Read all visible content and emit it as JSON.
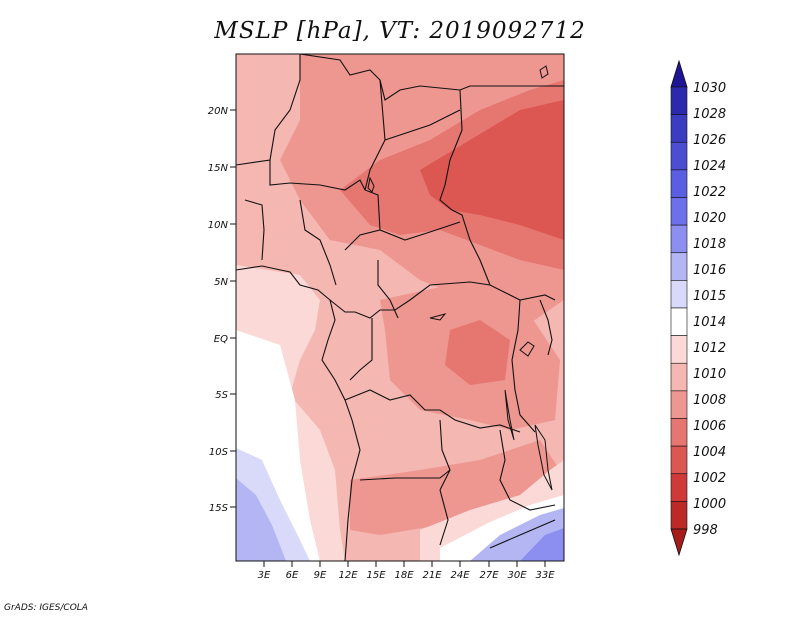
{
  "title": "MSLP [hPa], VT: 2019092712",
  "credit": "GrADS: IGES/COLA",
  "lat_labels": [
    "20N",
    "15N",
    "10N",
    "5N",
    "EQ",
    "5S",
    "10S",
    "15S"
  ],
  "lon_labels": [
    "3E",
    "6E",
    "9E",
    "12E",
    "15E",
    "18E",
    "21E",
    "24E",
    "27E",
    "30E",
    "33E"
  ],
  "colorbar": {
    "levels": [
      "1030",
      "1028",
      "1026",
      "1024",
      "1022",
      "1020",
      "1018",
      "1016",
      "1015",
      "1014",
      "1012",
      "1010",
      "1008",
      "1006",
      "1004",
      "1002",
      "1000",
      "998"
    ],
    "colors": [
      "#1e1496",
      "#2c2aac",
      "#3c3cc0",
      "#4b4dd2",
      "#5a5ee0",
      "#6d70ea",
      "#8c8ef0",
      "#b4b6f4",
      "#d9dafa",
      "#ffffff",
      "#fad9d6",
      "#f4b7b2",
      "#ee9690",
      "#e67670",
      "#dc5652",
      "#cf3a38",
      "#bc2a28",
      "#a51c1a"
    ]
  },
  "map": {
    "projection": "lat-lon",
    "lon_range": [
      0,
      35
    ],
    "lat_range": [
      -19.5,
      24.5
    ],
    "variable": "MSLP",
    "units": "hPa",
    "valid_time": "2019092712"
  }
}
